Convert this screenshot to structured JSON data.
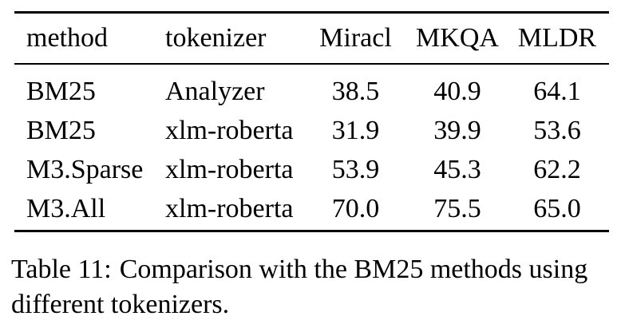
{
  "table": {
    "columns": [
      {
        "key": "method",
        "label": "method",
        "align": "left"
      },
      {
        "key": "tokenizer",
        "label": "tokenizer",
        "align": "left"
      },
      {
        "key": "miracl",
        "label": "Miracl",
        "align": "center"
      },
      {
        "key": "mkqa",
        "label": "MKQA",
        "align": "center"
      },
      {
        "key": "mldr",
        "label": "MLDR",
        "align": "center"
      }
    ],
    "rows": [
      [
        "BM25",
        "Analyzer",
        "38.5",
        "40.9",
        "64.1"
      ],
      [
        "BM25",
        "xlm-roberta",
        "31.9",
        "39.9",
        "53.6"
      ],
      [
        "M3.Sparse",
        "xlm-roberta",
        "53.9",
        "45.3",
        "62.2"
      ],
      [
        "M3.All",
        "xlm-roberta",
        "70.0",
        "75.5",
        "65.0"
      ]
    ]
  },
  "caption": {
    "label": "Table 11:",
    "text": "Comparison with the BM25 methods using different tokenizers."
  },
  "colors": {
    "background": "#ffffff",
    "text": "#000000",
    "rule": "#000000"
  }
}
